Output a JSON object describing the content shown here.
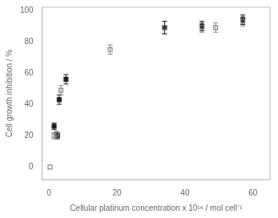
{
  "chart_data": {
    "type": "scatter",
    "xlabel": "Cellular platinum concentration x 10¹⁶ / mol cell⁻¹",
    "ylabel": "Cell growth inhibition / %",
    "xlim": [
      -2,
      65
    ],
    "ylim": [
      -8,
      102
    ],
    "xticks": [
      0,
      20,
      40,
      60
    ],
    "yticks": [
      0,
      20,
      40,
      60,
      80,
      100
    ],
    "grid": false,
    "series": [
      {
        "color": "#888888",
        "marker": "square-open",
        "x": [
          0.3,
          1.5,
          2.2,
          3.5,
          18,
          34,
          45,
          49,
          57
        ],
        "values": [
          0,
          20,
          21,
          49,
          75,
          89,
          89,
          89,
          93
        ],
        "yerr": [
          0,
          2,
          2,
          3,
          3,
          4,
          3,
          3,
          3
        ]
      },
      {
        "color": "#222222",
        "marker": "square",
        "x": [
          1.5,
          2.5,
          3.0,
          5.0,
          34,
          45,
          57
        ],
        "values": [
          26,
          20,
          43,
          56,
          89,
          90,
          94
        ],
        "yerr": [
          2,
          2,
          3,
          3,
          4,
          3,
          3
        ]
      }
    ]
  }
}
